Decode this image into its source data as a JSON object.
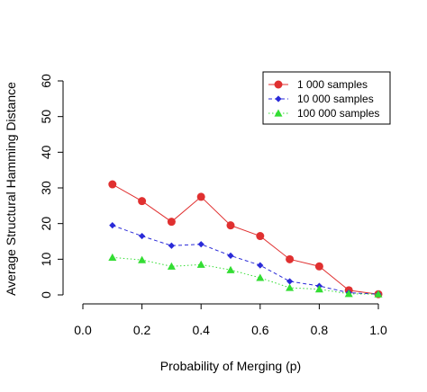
{
  "chart_data": {
    "type": "line",
    "title": "",
    "xlabel": "Probability of Merging (p)",
    "ylabel": "Average Structural Hamming Distance",
    "xlim": [
      0.0,
      1.0
    ],
    "ylim": [
      0,
      60
    ],
    "xticks": [
      "0.0",
      "0.2",
      "0.4",
      "0.6",
      "0.8",
      "1.0"
    ],
    "yticks": [
      "0",
      "10",
      "20",
      "30",
      "40",
      "50",
      "60"
    ],
    "x": [
      0.1,
      0.2,
      0.3,
      0.4,
      0.5,
      0.6,
      0.7,
      0.8,
      0.9,
      1.0
    ],
    "grid": false,
    "legend_position": "top-right",
    "series": [
      {
        "name": "1 000 samples",
        "color": "#e03030",
        "marker": "circle",
        "line": "solid",
        "values": [
          31,
          26.3,
          20.5,
          27.5,
          19.5,
          16.5,
          10,
          8,
          1.3,
          0.2
        ]
      },
      {
        "name": "10 000 samples",
        "color": "#2a2ad8",
        "marker": "diamond",
        "line": "dashed",
        "values": [
          19.5,
          16.5,
          13.8,
          14.2,
          11,
          8.3,
          3.8,
          2.5,
          0.6,
          0.2
        ]
      },
      {
        "name": "100 000 samples",
        "color": "#33dd33",
        "marker": "triangle",
        "line": "dotted",
        "values": [
          10.5,
          9.8,
          8,
          8.5,
          7,
          4.8,
          2,
          1.6,
          0.3,
          0.2
        ]
      }
    ]
  }
}
